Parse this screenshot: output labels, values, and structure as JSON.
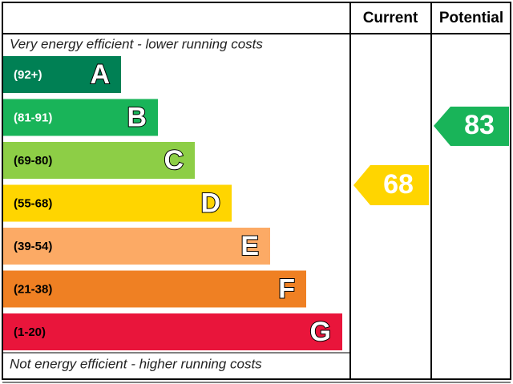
{
  "headers": {
    "current": "Current",
    "potential": "Potential"
  },
  "top_note": "Very energy efficient - lower running costs",
  "bottom_note": "Not energy efficient - higher running costs",
  "bands": [
    {
      "range": "(92+)",
      "letter": "A",
      "color": "#008054",
      "text_color": "#ffffff"
    },
    {
      "range": "(81-91)",
      "letter": "B",
      "color": "#19b459",
      "text_color": "#ffffff"
    },
    {
      "range": "(69-80)",
      "letter": "C",
      "color": "#8dce46",
      "text_color": "#000000"
    },
    {
      "range": "(55-68)",
      "letter": "D",
      "color": "#ffd500",
      "text_color": "#000000"
    },
    {
      "range": "(39-54)",
      "letter": "E",
      "color": "#fcaa65",
      "text_color": "#000000"
    },
    {
      "range": "(21-38)",
      "letter": "F",
      "color": "#ef8023",
      "text_color": "#000000"
    },
    {
      "range": "(1-20)",
      "letter": "G",
      "color": "#e9153b",
      "text_color": "#000000"
    }
  ],
  "current": {
    "value": 68,
    "color": "#ffd500"
  },
  "potential": {
    "value": 83,
    "color": "#19b459"
  }
}
